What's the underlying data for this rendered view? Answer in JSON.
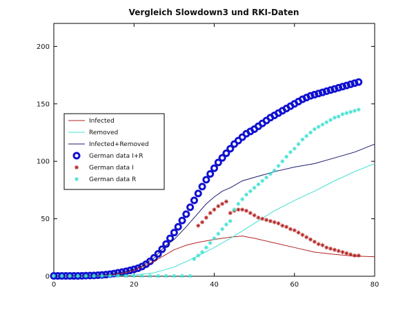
{
  "chart_data": {
    "type": "line",
    "title": "Vergleich Slowdown3 und RKI-Daten",
    "xlabel": "",
    "ylabel": "",
    "xlim": [
      0,
      80
    ],
    "ylim": [
      0,
      220
    ],
    "xticks": [
      0,
      20,
      40,
      60,
      80
    ],
    "yticks": [
      0,
      50,
      100,
      150,
      200
    ],
    "grid": false,
    "legend_position": "middle-left",
    "series": [
      {
        "name": "Infected",
        "style": "line",
        "color": "#b22222",
        "points": [
          [
            0,
            0
          ],
          [
            10,
            0.5
          ],
          [
            15,
            1.5
          ],
          [
            18,
            3
          ],
          [
            20,
            5
          ],
          [
            22,
            8
          ],
          [
            25,
            13
          ],
          [
            28,
            19
          ],
          [
            30,
            23
          ],
          [
            33,
            27
          ],
          [
            36,
            29.5
          ],
          [
            40,
            32
          ],
          [
            44,
            34
          ],
          [
            47,
            35
          ],
          [
            50,
            33
          ],
          [
            55,
            29
          ],
          [
            60,
            25
          ],
          [
            65,
            21
          ],
          [
            70,
            19
          ],
          [
            75,
            17.5
          ],
          [
            80,
            17
          ]
        ]
      },
      {
        "name": "Removed",
        "style": "line",
        "color": "#40e0d0",
        "points": [
          [
            0,
            0
          ],
          [
            15,
            0.3
          ],
          [
            20,
            1
          ],
          [
            25,
            3
          ],
          [
            30,
            8
          ],
          [
            35,
            16
          ],
          [
            40,
            25
          ],
          [
            45,
            35
          ],
          [
            50,
            46
          ],
          [
            55,
            57
          ],
          [
            60,
            66
          ],
          [
            65,
            74
          ],
          [
            70,
            83
          ],
          [
            75,
            91
          ],
          [
            80,
            98
          ]
        ]
      },
      {
        "name": "Infected+Removed",
        "style": "line",
        "color": "#1a1a6e",
        "points": [
          [
            0,
            0
          ],
          [
            10,
            0.5
          ],
          [
            15,
            2
          ],
          [
            18,
            4
          ],
          [
            20,
            6
          ],
          [
            22,
            9
          ],
          [
            25,
            16
          ],
          [
            28,
            27
          ],
          [
            30,
            32
          ],
          [
            33,
            43
          ],
          [
            36,
            55
          ],
          [
            38,
            63
          ],
          [
            40,
            69
          ],
          [
            42,
            74
          ],
          [
            44,
            77
          ],
          [
            47,
            83
          ],
          [
            50,
            86
          ],
          [
            55,
            91
          ],
          [
            60,
            95
          ],
          [
            65,
            98
          ],
          [
            70,
            103
          ],
          [
            75,
            108
          ],
          [
            80,
            115
          ]
        ]
      },
      {
        "name": "German data I+R",
        "style": "marker-circle",
        "color": "#1010d0",
        "points": [
          [
            0,
            0.3
          ],
          [
            1,
            0.3
          ],
          [
            2,
            0.3
          ],
          [
            3,
            0.3
          ],
          [
            4,
            0.3
          ],
          [
            5,
            0.3
          ],
          [
            6,
            0.3
          ],
          [
            7,
            0.4
          ],
          [
            8,
            0.5
          ],
          [
            9,
            0.6
          ],
          [
            10,
            0.7
          ],
          [
            11,
            0.9
          ],
          [
            12,
            1.1
          ],
          [
            13,
            1.4
          ],
          [
            14,
            1.8
          ],
          [
            15,
            2.3
          ],
          [
            16,
            3
          ],
          [
            17,
            3.6
          ],
          [
            18,
            4.3
          ],
          [
            19,
            5.1
          ],
          [
            20,
            6
          ],
          [
            21,
            7
          ],
          [
            22,
            8.5
          ],
          [
            23,
            10.5
          ],
          [
            24,
            13
          ],
          [
            25,
            16
          ],
          [
            26,
            19.5
          ],
          [
            27,
            23.5
          ],
          [
            28,
            28
          ],
          [
            29,
            33
          ],
          [
            30,
            38
          ],
          [
            31,
            43
          ],
          [
            32,
            48.5
          ],
          [
            33,
            54
          ],
          [
            34,
            60
          ],
          [
            35,
            66
          ],
          [
            36,
            72
          ],
          [
            37,
            78
          ],
          [
            38,
            84
          ],
          [
            39,
            89
          ],
          [
            40,
            94
          ],
          [
            41,
            99
          ],
          [
            42,
            103
          ],
          [
            43,
            107
          ],
          [
            44,
            111
          ],
          [
            45,
            115
          ],
          [
            46,
            118
          ],
          [
            47,
            121
          ],
          [
            48,
            124
          ],
          [
            49,
            126
          ],
          [
            50,
            128
          ],
          [
            51,
            130.5
          ],
          [
            52,
            133
          ],
          [
            53,
            135.5
          ],
          [
            54,
            138
          ],
          [
            55,
            140
          ],
          [
            56,
            142
          ],
          [
            57,
            144
          ],
          [
            58,
            146
          ],
          [
            59,
            148
          ],
          [
            60,
            150
          ],
          [
            61,
            152
          ],
          [
            62,
            154
          ],
          [
            63,
            155.5
          ],
          [
            64,
            157
          ],
          [
            65,
            158
          ],
          [
            66,
            159
          ],
          [
            67,
            160
          ],
          [
            68,
            161
          ],
          [
            69,
            162
          ],
          [
            70,
            163
          ],
          [
            71,
            164
          ],
          [
            72,
            165
          ],
          [
            73,
            166
          ],
          [
            74,
            167
          ],
          [
            75,
            168
          ],
          [
            76,
            169
          ]
        ]
      },
      {
        "name": "German data I",
        "style": "marker-asterisk",
        "color": "#b22222",
        "points": [
          [
            36,
            44
          ],
          [
            37,
            47
          ],
          [
            38,
            51
          ],
          [
            39,
            55
          ],
          [
            40,
            58
          ],
          [
            41,
            61
          ],
          [
            42,
            63
          ],
          [
            43,
            65
          ],
          [
            44,
            55
          ],
          [
            45,
            57
          ],
          [
            46,
            58
          ],
          [
            47,
            58
          ],
          [
            48,
            57
          ],
          [
            49,
            55
          ],
          [
            50,
            53
          ],
          [
            51,
            51
          ],
          [
            52,
            50
          ],
          [
            53,
            49
          ],
          [
            54,
            48
          ],
          [
            55,
            47
          ],
          [
            56,
            46
          ],
          [
            57,
            44
          ],
          [
            58,
            43
          ],
          [
            59,
            41
          ],
          [
            60,
            40
          ],
          [
            61,
            38
          ],
          [
            62,
            36
          ],
          [
            63,
            34
          ],
          [
            64,
            32
          ],
          [
            65,
            30
          ],
          [
            66,
            28
          ],
          [
            67,
            27
          ],
          [
            68,
            25
          ],
          [
            69,
            24
          ],
          [
            70,
            23
          ],
          [
            71,
            22
          ],
          [
            72,
            21
          ],
          [
            73,
            20
          ],
          [
            74,
            19
          ],
          [
            75,
            18
          ],
          [
            76,
            18
          ]
        ]
      },
      {
        "name": "German data R",
        "style": "marker-asterisk",
        "color": "#40e0d0",
        "points": [
          [
            0,
            0.3
          ],
          [
            2,
            0.3
          ],
          [
            4,
            0.3
          ],
          [
            6,
            0.3
          ],
          [
            8,
            0.3
          ],
          [
            10,
            0.3
          ],
          [
            12,
            0.3
          ],
          [
            14,
            0.3
          ],
          [
            16,
            0.3
          ],
          [
            18,
            0.3
          ],
          [
            20,
            0.3
          ],
          [
            22,
            0.3
          ],
          [
            24,
            0.3
          ],
          [
            26,
            0.3
          ],
          [
            28,
            0.3
          ],
          [
            30,
            0.3
          ],
          [
            32,
            0.3
          ],
          [
            34,
            0.3
          ],
          [
            35,
            15
          ],
          [
            36,
            18
          ],
          [
            37,
            21
          ],
          [
            38,
            25
          ],
          [
            39,
            29
          ],
          [
            40,
            33
          ],
          [
            41,
            37
          ],
          [
            42,
            41
          ],
          [
            43,
            45
          ],
          [
            44,
            48
          ],
          [
            45,
            58
          ],
          [
            46,
            63
          ],
          [
            47,
            67
          ],
          [
            48,
            71
          ],
          [
            49,
            74
          ],
          [
            50,
            77
          ],
          [
            51,
            80
          ],
          [
            52,
            83
          ],
          [
            53,
            86
          ],
          [
            54,
            89
          ],
          [
            55,
            92
          ],
          [
            56,
            96
          ],
          [
            57,
            100
          ],
          [
            58,
            104
          ],
          [
            59,
            108
          ],
          [
            60,
            111
          ],
          [
            61,
            115
          ],
          [
            62,
            119
          ],
          [
            63,
            122
          ],
          [
            64,
            125
          ],
          [
            65,
            128
          ],
          [
            66,
            130
          ],
          [
            67,
            132
          ],
          [
            68,
            134
          ],
          [
            69,
            136
          ],
          [
            70,
            138
          ],
          [
            71,
            139
          ],
          [
            72,
            141
          ],
          [
            73,
            142
          ],
          [
            74,
            143
          ],
          [
            75,
            144
          ],
          [
            76,
            145
          ]
        ]
      }
    ]
  }
}
